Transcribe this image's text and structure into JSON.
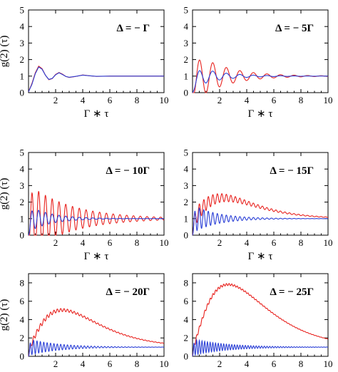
{
  "chart_data": [
    {
      "type": "line",
      "annotation": "Δ = − Γ",
      "xlabel": "Γ ∗ τ",
      "ylabel": "g(2) (τ)",
      "xlim": [
        0,
        10
      ],
      "ylim": [
        0,
        5
      ],
      "xticks": [
        2,
        4,
        6,
        8,
        10
      ],
      "yticks": [
        0,
        1,
        2,
        3,
        4,
        5
      ],
      "series": [
        {
          "color": "#e8231f",
          "x": [
            0,
            0.25,
            0.5,
            0.75,
            1.0,
            1.25,
            1.5,
            1.75,
            2.0,
            2.25,
            2.5,
            2.75,
            3.0,
            3.5,
            4.0,
            4.5,
            5.0,
            6.0,
            7.0,
            8.0,
            9.0,
            10.0
          ],
          "values": [
            0.05,
            0.55,
            1.2,
            1.6,
            1.45,
            1.05,
            0.78,
            0.85,
            1.1,
            1.22,
            1.12,
            0.98,
            0.92,
            0.98,
            1.07,
            1.02,
            0.98,
            1.0,
            1.0,
            1.0,
            1.0,
            1.0
          ]
        },
        {
          "color": "#2a3fd6",
          "x": [
            0,
            0.25,
            0.5,
            0.75,
            1.0,
            1.25,
            1.5,
            1.75,
            2.0,
            2.25,
            2.5,
            2.75,
            3.0,
            3.5,
            4.0,
            4.5,
            5.0,
            6.0,
            7.0,
            8.0,
            9.0,
            10.0
          ],
          "values": [
            0.05,
            0.5,
            1.15,
            1.55,
            1.42,
            1.05,
            0.8,
            0.86,
            1.08,
            1.2,
            1.1,
            0.98,
            0.93,
            0.99,
            1.06,
            1.02,
            0.99,
            1.0,
            1.0,
            1.0,
            1.0,
            1.0
          ]
        }
      ]
    },
    {
      "type": "line",
      "annotation": "Δ = − 5Γ",
      "xlabel": "Γ ∗ τ",
      "ylabel": "",
      "xlim": [
        0,
        10
      ],
      "ylim": [
        0,
        5
      ],
      "xticks": [
        2,
        4,
        6,
        8,
        10
      ],
      "yticks": [
        0,
        1,
        2,
        3,
        4,
        5
      ],
      "gen": [
        {
          "color": "#e8231f",
          "x": [
            0,
            10
          ],
          "base": 1.0,
          "amp": 1.6,
          "decay": 0.45,
          "period": 1.0,
          "envAmp": 0,
          "envPeak": 1,
          "envWidth": 1,
          "rise": 4
        },
        {
          "color": "#2a3fd6",
          "x": [
            0,
            10
          ],
          "base": 1.0,
          "amp": 0.7,
          "decay": 0.55,
          "period": 1.0,
          "envAmp": 0,
          "envPeak": 1,
          "envWidth": 1,
          "rise": 4
        }
      ]
    },
    {
      "type": "line",
      "annotation": "Δ = − 10Γ",
      "xlabel": "Γ ∗ τ",
      "ylabel": "g(2) (τ)",
      "xlim": [
        0,
        10
      ],
      "ylim": [
        0,
        5
      ],
      "xticks": [
        2,
        4,
        6,
        8,
        10
      ],
      "yticks": [
        0,
        1,
        2,
        3,
        4,
        5
      ],
      "gen": [
        {
          "color": "#e8231f",
          "x": [
            0,
            10
          ],
          "base": 1.0,
          "amp": 2.1,
          "decay": 0.32,
          "period": 0.5,
          "envAmp": 0,
          "envPeak": 1,
          "envWidth": 1,
          "rise": 8
        },
        {
          "color": "#2a3fd6",
          "x": [
            0,
            10
          ],
          "base": 1.0,
          "amp": 0.8,
          "decay": 0.6,
          "period": 0.5,
          "envAmp": 0,
          "envPeak": 1,
          "envWidth": 1,
          "rise": 8
        }
      ]
    },
    {
      "type": "line",
      "annotation": "Δ = − 15Γ",
      "xlabel": "Γ ∗ τ",
      "ylabel": "",
      "xlim": [
        0,
        10
      ],
      "ylim": [
        0,
        5
      ],
      "xticks": [
        2,
        4,
        6,
        8,
        10
      ],
      "yticks": [
        0,
        1,
        2,
        3,
        4,
        5
      ],
      "gen": [
        {
          "color": "#e8231f",
          "x": [
            0,
            10
          ],
          "base": 1.0,
          "amp": 0.6,
          "decay": 0.35,
          "period": 0.333,
          "envAmp": 1.25,
          "envPeak": 2.5,
          "envWidth": 5,
          "rise": 10
        },
        {
          "color": "#2a3fd6",
          "x": [
            0,
            10
          ],
          "base": 1.0,
          "amp": 0.85,
          "decay": 0.55,
          "period": 0.333,
          "envAmp": 0,
          "envPeak": 1,
          "envWidth": 1,
          "rise": 10
        }
      ]
    },
    {
      "type": "line",
      "annotation": "Δ = − 20Γ",
      "xlabel": "Γ ∗ τ",
      "ylabel": "g(2) (τ)",
      "xlim": [
        0,
        10
      ],
      "ylim": [
        0,
        9
      ],
      "xticks": [
        2,
        4,
        6,
        8,
        10
      ],
      "yticks": [
        0,
        2,
        4,
        6,
        8
      ],
      "gen": [
        {
          "color": "#e8231f",
          "x": [
            0,
            10
          ],
          "base": 1.0,
          "amp": 0.35,
          "decay": 0.25,
          "period": 0.25,
          "envAmp": 4.0,
          "envPeak": 2.8,
          "envWidth": 5.5,
          "rise": 12
        },
        {
          "color": "#2a3fd6",
          "x": [
            0,
            10
          ],
          "base": 1.0,
          "amp": 0.9,
          "decay": 0.45,
          "period": 0.25,
          "envAmp": 0,
          "envPeak": 1,
          "envWidth": 1,
          "rise": 12
        }
      ]
    },
    {
      "type": "line",
      "annotation": "Δ = − 25Γ",
      "xlabel": "Γ ∗ τ",
      "ylabel": "",
      "xlim": [
        0,
        10
      ],
      "ylim": [
        0,
        9
      ],
      "xticks": [
        2,
        4,
        6,
        8,
        10
      ],
      "yticks": [
        0,
        2,
        4,
        6,
        8
      ],
      "gen": [
        {
          "color": "#e8231f",
          "x": [
            0,
            10
          ],
          "base": 1.0,
          "amp": 0.25,
          "decay": 0.25,
          "period": 0.2,
          "envAmp": 6.8,
          "envPeak": 2.8,
          "envWidth": 5.8,
          "rise": 14
        },
        {
          "color": "#2a3fd6",
          "x": [
            0,
            10
          ],
          "base": 1.0,
          "amp": 0.9,
          "decay": 0.4,
          "period": 0.2,
          "envAmp": 0,
          "envPeak": 1,
          "envWidth": 1,
          "rise": 14
        }
      ]
    }
  ]
}
